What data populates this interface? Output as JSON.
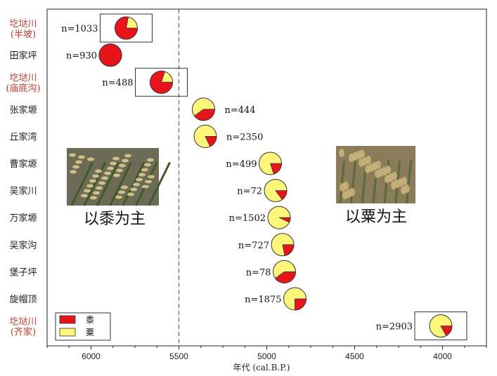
{
  "chart_data": {
    "type": "scatter",
    "marker": "pie",
    "xlabel": "年代 (cal.B.P.)",
    "xlim": [
      6250,
      3750
    ],
    "x_reversed": true,
    "x_ticks": [
      6000,
      5500,
      5000,
      4500,
      4000
    ],
    "x_ticklabels": [
      "6000",
      "5500",
      "5000",
      "4500",
      "4000"
    ],
    "reference_line": {
      "x": 5500,
      "style": "dashed",
      "color": "#2b4fbf"
    },
    "legend": {
      "position": "bottom-left",
      "entries": [
        {
          "label": "黍",
          "color": "#e8141b"
        },
        {
          "label": "粟",
          "color": "#fdf67a"
        }
      ]
    },
    "series_colors": {
      "黍": "#e8141b",
      "粟": "#fdf67a"
    },
    "annotations": [
      {
        "text": "以黍为主",
        "near_x": 5850
      },
      {
        "text": "以粟为主",
        "near_x": 4300
      }
    ],
    "categories": [
      "圪垯川\n(半坡)",
      "田家坪",
      "圪垯川\n(庙底沟)",
      "张家塬",
      "丘家湾",
      "曹家塬",
      "吴家川",
      "万家塬",
      "吴家沟",
      "堡子坪",
      "旋帽顶",
      "圪垯川\n(齐家)"
    ],
    "points": [
      {
        "site": "圪垯川(半坡)",
        "x": 5800,
        "n": "n=1033",
        "millet_share": 0.78,
        "foxtail_share": 0.22,
        "boxed": true,
        "label_side": "left"
      },
      {
        "site": "田家坪",
        "x": 5890,
        "n": "n=930",
        "millet_share": 1.0,
        "foxtail_share": 0.0,
        "boxed": false,
        "label_side": "left"
      },
      {
        "site": "圪垯川(庙底沟)",
        "x": 5600,
        "n": "n=488",
        "millet_share": 0.8,
        "foxtail_share": 0.2,
        "boxed": true,
        "label_side": "left"
      },
      {
        "site": "张家塬",
        "x": 5360,
        "n": "n=444",
        "millet_share": 0.4,
        "foxtail_share": 0.6,
        "boxed": false,
        "label_side": "right"
      },
      {
        "site": "丘家湾",
        "x": 5350,
        "n": "n=2350",
        "millet_share": 0.18,
        "foxtail_share": 0.82,
        "boxed": false,
        "label_side": "right"
      },
      {
        "site": "曹家塬",
        "x": 4980,
        "n": "n=499",
        "millet_share": 0.2,
        "foxtail_share": 0.8,
        "boxed": false,
        "label_side": "left"
      },
      {
        "site": "吴家川",
        "x": 4950,
        "n": "n=72",
        "millet_share": 0.15,
        "foxtail_share": 0.85,
        "boxed": false,
        "label_side": "left"
      },
      {
        "site": "万家塬",
        "x": 4930,
        "n": "n=1502",
        "millet_share": 0.07,
        "foxtail_share": 0.93,
        "boxed": false,
        "label_side": "left"
      },
      {
        "site": "吴家沟",
        "x": 4910,
        "n": "n=727",
        "millet_share": 0.22,
        "foxtail_share": 0.78,
        "boxed": false,
        "label_side": "left"
      },
      {
        "site": "堡子坪",
        "x": 4900,
        "n": "n=78",
        "millet_share": 0.4,
        "foxtail_share": 0.6,
        "boxed": false,
        "label_side": "left"
      },
      {
        "site": "旋帽顶",
        "x": 4840,
        "n": "n=1875",
        "millet_share": 0.25,
        "foxtail_share": 0.75,
        "boxed": false,
        "label_side": "left"
      },
      {
        "site": "圪垯川(齐家)",
        "x": 4010,
        "n": "n=2903",
        "millet_share": 0.17,
        "foxtail_share": 0.83,
        "boxed": true,
        "label_side": "left"
      }
    ],
    "highlighted_sites": [
      "圪垯川(半坡)",
      "圪垯川(庙底沟)",
      "圪垯川(齐家)"
    ],
    "label_colors": {
      "highlight": "#c0392b",
      "normal": "#222222"
    }
  }
}
